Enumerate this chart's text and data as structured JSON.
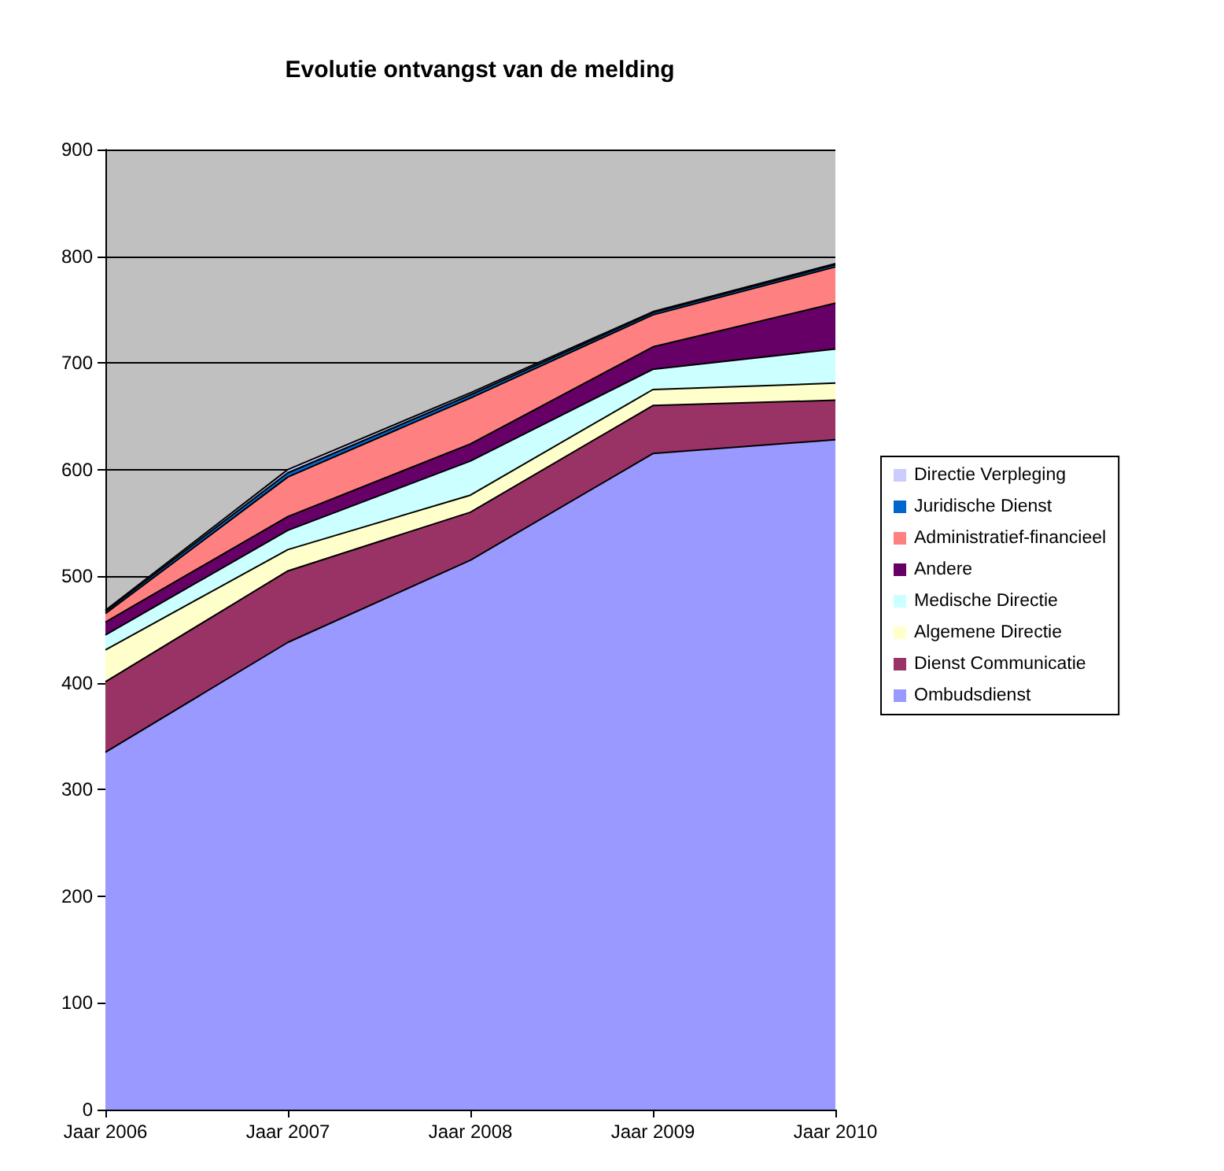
{
  "chart_data": {
    "type": "area",
    "title": "Evolutie ontvangst van de melding",
    "categories": [
      "Jaar 2006",
      "Jaar 2007",
      "Jaar 2008",
      "Jaar 2009",
      "Jaar 2010"
    ],
    "stacked": true,
    "series": [
      {
        "name": "Ombudsdienst",
        "color": "#9999ff",
        "values": [
          335,
          438,
          515,
          615,
          628
        ]
      },
      {
        "name": "Dienst Communicatie",
        "color": "#993366",
        "values": [
          66,
          67,
          45,
          45,
          37
        ]
      },
      {
        "name": "Algemene Directie",
        "color": "#ffffcc",
        "values": [
          30,
          20,
          16,
          15,
          16
        ]
      },
      {
        "name": "Medische Directie",
        "color": "#ccffff",
        "values": [
          14,
          18,
          32,
          19,
          32
        ]
      },
      {
        "name": "Andere",
        "color": "#660066",
        "values": [
          12,
          13,
          16,
          21,
          43
        ]
      },
      {
        "name": "Administratief-financieel",
        "color": "#ff8080",
        "values": [
          8,
          37,
          43,
          30,
          34
        ]
      },
      {
        "name": "Juridische Dienst",
        "color": "#0066cc",
        "values": [
          2,
          4,
          3,
          2,
          2
        ]
      },
      {
        "name": "Directie Verpleging",
        "color": "#ccccff",
        "values": [
          1,
          3,
          2,
          1,
          1
        ]
      }
    ],
    "ylim": [
      0,
      900
    ],
    "yticks": [
      0,
      100,
      200,
      300,
      400,
      500,
      600,
      700,
      800,
      900
    ],
    "grid": "y",
    "legend": "right",
    "marker": "none",
    "line_style": "solid"
  }
}
